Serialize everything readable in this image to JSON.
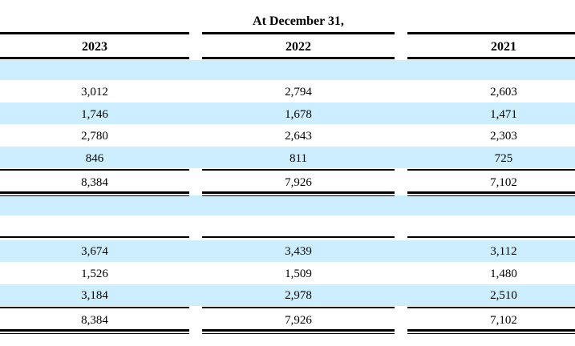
{
  "table": {
    "title": "At December 31,",
    "years": [
      "2023",
      "2022",
      "2021"
    ],
    "section1_rows": [
      [
        "3,012",
        "2,794",
        "2,603"
      ],
      [
        "1,746",
        "1,678",
        "1,471"
      ],
      [
        "2,780",
        "2,643",
        "2,303"
      ],
      [
        "846",
        "811",
        "725"
      ]
    ],
    "section1_total": [
      "8,384",
      "7,926",
      "7,102"
    ],
    "section2_rows": [
      [
        "3,674",
        "3,439",
        "3,112"
      ],
      [
        "1,526",
        "1,509",
        "1,480"
      ],
      [
        "3,184",
        "2,978",
        "2,510"
      ]
    ],
    "section2_total": [
      "8,384",
      "7,926",
      "7,102"
    ]
  },
  "colors": {
    "band": "#cceeff",
    "rule": "#000000"
  }
}
